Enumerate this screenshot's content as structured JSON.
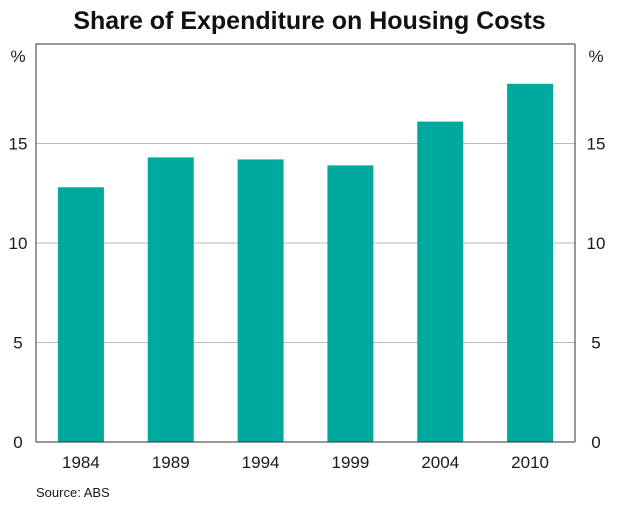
{
  "chart_data": {
    "type": "bar",
    "title": "Share of Expenditure on Housing Costs",
    "categories": [
      "1984",
      "1989",
      "1994",
      "1999",
      "2004",
      "2010"
    ],
    "values": [
      12.8,
      14.3,
      14.2,
      13.9,
      16.1,
      18.0
    ],
    "ylim": [
      0,
      20
    ],
    "yticks": [
      0,
      5,
      10,
      15
    ],
    "yunit_left": "%",
    "yunit_right": "%",
    "gridlines": true,
    "source": "Source: ABS",
    "colors": {
      "bar": "#00A99D",
      "grid": "#b9b9b9",
      "axis": "#333333"
    }
  }
}
